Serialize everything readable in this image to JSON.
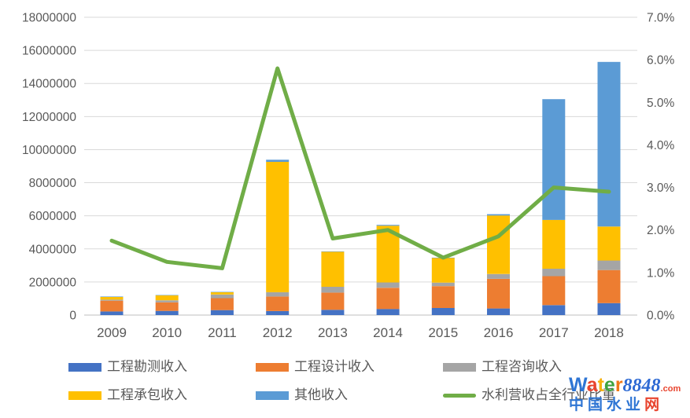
{
  "chart_data": {
    "type": "bar",
    "subtype": "stacked-columns-with-line-overlay",
    "title": "",
    "categories": [
      "2009",
      "2010",
      "2011",
      "2012",
      "2013",
      "2014",
      "2015",
      "2016",
      "2017",
      "2018"
    ],
    "bar_series": [
      {
        "name": "工程勘测收入",
        "color": "#4472C4",
        "values": [
          220000,
          250000,
          300000,
          240000,
          320000,
          370000,
          430000,
          400000,
          600000,
          720000
        ]
      },
      {
        "name": "工程设计收入",
        "color": "#ED7D31",
        "values": [
          650000,
          520000,
          720000,
          880000,
          1040000,
          1280000,
          1320000,
          1790000,
          1750000,
          2000000
        ]
      },
      {
        "name": "工程咨询收入",
        "color": "#A5A5A5",
        "values": [
          60000,
          120000,
          220000,
          260000,
          350000,
          320000,
          210000,
          290000,
          450000,
          580000
        ]
      },
      {
        "name": "工程承包收入",
        "color": "#FFC000",
        "values": [
          160000,
          300000,
          140000,
          7880000,
          2120000,
          3430000,
          1500000,
          3540000,
          2950000,
          2050000
        ]
      },
      {
        "name": "其他收入",
        "color": "#5B9BD5",
        "values": [
          30000,
          20000,
          20000,
          130000,
          20000,
          50000,
          10000,
          80000,
          7300000,
          9950000
        ]
      }
    ],
    "bar_totals": [
      1120000,
      1210000,
      1400000,
      9390000,
      3850000,
      5450000,
      3470000,
      6100000,
      13050000,
      15300000
    ],
    "line_series": {
      "name": "水利营收占全行业比重",
      "color": "#70AD47",
      "axis": "right",
      "values_percent": [
        1.75,
        1.25,
        1.1,
        5.8,
        1.8,
        2.0,
        1.35,
        1.85,
        3.0,
        2.9
      ]
    },
    "left_axis": {
      "min": 0,
      "max": 18000000,
      "step": 2000000,
      "tick_labels": [
        "0",
        "2000000",
        "4000000",
        "6000000",
        "8000000",
        "10000000",
        "12000000",
        "14000000",
        "16000000",
        "18000000"
      ]
    },
    "right_axis": {
      "min": 0,
      "max": 7,
      "step": 1,
      "tick_labels": [
        "0.0%",
        "1.0%",
        "2.0%",
        "3.0%",
        "4.0%",
        "5.0%",
        "6.0%",
        "7.0%"
      ]
    },
    "grid": true,
    "legend_position": "bottom"
  },
  "legend": {
    "row1": [
      {
        "label": "工程勘测收入",
        "color": "#4472C4",
        "swatch": "rect"
      },
      {
        "label": "工程设计收入",
        "color": "#ED7D31",
        "swatch": "rect"
      },
      {
        "label": "工程咨询收入",
        "color": "#A5A5A5",
        "swatch": "rect"
      }
    ],
    "row2": [
      {
        "label": "工程承包收入",
        "color": "#FFC000",
        "swatch": "rect"
      },
      {
        "label": "其他收入",
        "color": "#5B9BD5",
        "swatch": "rect"
      },
      {
        "label": "水利营收占全行业比重",
        "color": "#70AD47",
        "swatch": "line"
      }
    ]
  },
  "watermark": {
    "brand_letters": [
      {
        "ch": "W",
        "color": "#2E75D4"
      },
      {
        "ch": "a",
        "color": "#E8442E"
      },
      {
        "ch": "t",
        "color": "#F6B10E"
      },
      {
        "ch": "e",
        "color": "#3FA33F"
      },
      {
        "ch": "r",
        "color": "#F07818"
      }
    ],
    "brand_number": {
      "text": "8848",
      "color": "#2E6AD4"
    },
    "brand_suffix": {
      "text": ".com",
      "color": "#E8442E"
    },
    "subtitle_chars": [
      {
        "ch": "中",
        "color": "#2E75D4"
      },
      {
        "ch": "国",
        "color": "#2E75D4"
      },
      {
        "ch": "水",
        "color": "#2E75D4"
      },
      {
        "ch": "业",
        "color": "#2E75D4"
      },
      {
        "ch": "网",
        "color": "#E8442E"
      }
    ]
  },
  "colors": {
    "background": "#FFFFFF",
    "gridline": "#D9D9D9",
    "baseline": "#BFBFBF",
    "axis_text": "#595959"
  }
}
